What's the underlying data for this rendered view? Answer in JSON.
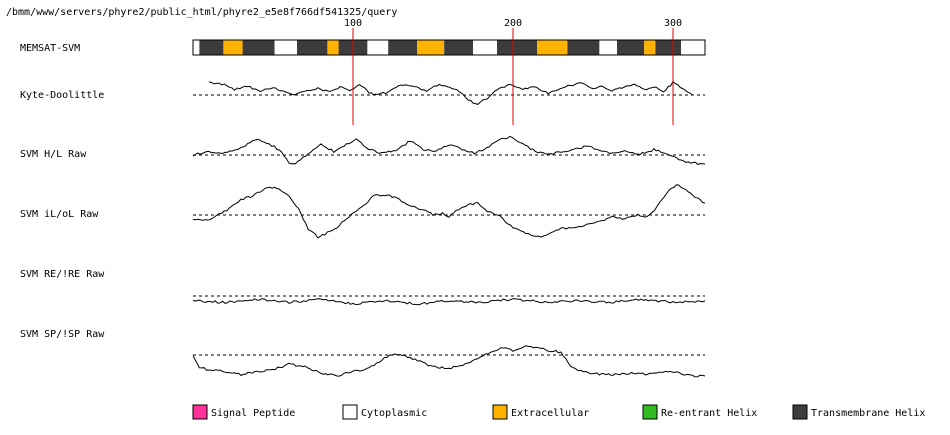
{
  "path": "/bmm/www/servers/phyre2/public_html/phyre2_e5e8f766df541325/query",
  "ruler_ticks": [
    100,
    200,
    300
  ],
  "sequence_length": 320,
  "tracks": [
    {
      "label": "MEMSAT-SVM"
    },
    {
      "label": "Kyte-Doolittle"
    },
    {
      "label": "SVM H/L Raw"
    },
    {
      "label": "SVM iL/oL Raw"
    },
    {
      "label": "SVM RE/!RE Raw"
    },
    {
      "label": "SVM SP/!SP Raw"
    }
  ],
  "colors": {
    "signal_peptide": "#ff3399",
    "cytoplasmic": "#ffffff",
    "extracellular": "#ffb200",
    "reentrant_helix": "#33bb22",
    "transmembrane_helix": "#3c3c3c",
    "ruler": "#dd0000"
  },
  "memsat_segments": [
    {
      "start": 0,
      "end": 4,
      "type": "cytoplasmic"
    },
    {
      "start": 4,
      "end": 19,
      "type": "transmembrane_helix"
    },
    {
      "start": 19,
      "end": 31,
      "type": "extracellular"
    },
    {
      "start": 31,
      "end": 51,
      "type": "transmembrane_helix"
    },
    {
      "start": 51,
      "end": 65,
      "type": "cytoplasmic"
    },
    {
      "start": 65,
      "end": 84,
      "type": "transmembrane_helix"
    },
    {
      "start": 84,
      "end": 91,
      "type": "extracellular"
    },
    {
      "start": 91,
      "end": 109,
      "type": "transmembrane_helix"
    },
    {
      "start": 109,
      "end": 122,
      "type": "cytoplasmic"
    },
    {
      "start": 122,
      "end": 140,
      "type": "transmembrane_helix"
    },
    {
      "start": 140,
      "end": 157,
      "type": "extracellular"
    },
    {
      "start": 157,
      "end": 175,
      "type": "transmembrane_helix"
    },
    {
      "start": 175,
      "end": 190,
      "type": "cytoplasmic"
    },
    {
      "start": 190,
      "end": 215,
      "type": "transmembrane_helix"
    },
    {
      "start": 215,
      "end": 234,
      "type": "extracellular"
    },
    {
      "start": 234,
      "end": 254,
      "type": "transmembrane_helix"
    },
    {
      "start": 254,
      "end": 265,
      "type": "cytoplasmic"
    },
    {
      "start": 265,
      "end": 282,
      "type": "transmembrane_helix"
    },
    {
      "start": 282,
      "end": 289,
      "type": "extracellular"
    },
    {
      "start": 289,
      "end": 305,
      "type": "transmembrane_helix"
    },
    {
      "start": 305,
      "end": 320,
      "type": "cytoplasmic"
    }
  ],
  "profiles": {
    "kyte_doolittle": [
      [
        10,
        0.9
      ],
      [
        18,
        0.8
      ],
      [
        26,
        0.4
      ],
      [
        34,
        0.6
      ],
      [
        42,
        0.3
      ],
      [
        50,
        0.5
      ],
      [
        58,
        0.2
      ],
      [
        62,
        0.0
      ],
      [
        70,
        0.3
      ],
      [
        78,
        0.5
      ],
      [
        86,
        0.2
      ],
      [
        92,
        0.6
      ],
      [
        98,
        0.3
      ],
      [
        104,
        0.7
      ],
      [
        110,
        0.2
      ],
      [
        114,
        0.0
      ],
      [
        122,
        0.2
      ],
      [
        130,
        0.7
      ],
      [
        138,
        0.6
      ],
      [
        146,
        0.3
      ],
      [
        154,
        0.8
      ],
      [
        162,
        0.5
      ],
      [
        168,
        0.2
      ],
      [
        172,
        -0.4
      ],
      [
        178,
        -0.6
      ],
      [
        184,
        -0.2
      ],
      [
        190,
        0.4
      ],
      [
        198,
        0.7
      ],
      [
        206,
        0.4
      ],
      [
        214,
        0.6
      ],
      [
        222,
        0.1
      ],
      [
        228,
        0.4
      ],
      [
        236,
        0.7
      ],
      [
        242,
        0.9
      ],
      [
        250,
        0.5
      ],
      [
        256,
        0.6
      ],
      [
        262,
        0.3
      ],
      [
        268,
        0.5
      ],
      [
        276,
        0.8
      ],
      [
        282,
        0.4
      ],
      [
        288,
        0.6
      ],
      [
        294,
        0.2
      ],
      [
        300,
        0.9
      ],
      [
        306,
        0.5
      ],
      [
        312,
        0.0
      ]
    ],
    "svm_hl": [
      [
        0,
        0.0
      ],
      [
        10,
        0.2
      ],
      [
        20,
        0.1
      ],
      [
        30,
        0.4
      ],
      [
        40,
        0.9
      ],
      [
        46,
        0.7
      ],
      [
        54,
        0.3
      ],
      [
        60,
        -0.4
      ],
      [
        64,
        -0.5
      ],
      [
        72,
        0.1
      ],
      [
        80,
        0.6
      ],
      [
        88,
        0.2
      ],
      [
        96,
        0.6
      ],
      [
        102,
        0.9
      ],
      [
        110,
        0.3
      ],
      [
        118,
        0.1
      ],
      [
        128,
        0.3
      ],
      [
        136,
        0.8
      ],
      [
        144,
        0.3
      ],
      [
        152,
        0.2
      ],
      [
        160,
        0.6
      ],
      [
        168,
        0.3
      ],
      [
        176,
        0.1
      ],
      [
        182,
        0.3
      ],
      [
        190,
        0.8
      ],
      [
        198,
        1.0
      ],
      [
        206,
        0.6
      ],
      [
        214,
        0.2
      ],
      [
        222,
        0.0
      ],
      [
        230,
        0.2
      ],
      [
        238,
        0.3
      ],
      [
        246,
        0.5
      ],
      [
        254,
        0.3
      ],
      [
        262,
        0.1
      ],
      [
        270,
        0.2
      ],
      [
        278,
        0.0
      ],
      [
        288,
        0.3
      ],
      [
        298,
        0.0
      ],
      [
        308,
        -0.4
      ],
      [
        320,
        -0.5
      ]
    ],
    "svm_iloL": [
      [
        0,
        -0.2
      ],
      [
        6,
        -0.3
      ],
      [
        12,
        -0.2
      ],
      [
        18,
        0.1
      ],
      [
        24,
        0.4
      ],
      [
        30,
        0.8
      ],
      [
        36,
        0.9
      ],
      [
        42,
        1.2
      ],
      [
        48,
        1.4
      ],
      [
        54,
        1.3
      ],
      [
        60,
        1.0
      ],
      [
        66,
        0.3
      ],
      [
        72,
        -0.7
      ],
      [
        78,
        -1.1
      ],
      [
        84,
        -0.9
      ],
      [
        90,
        -0.6
      ],
      [
        96,
        -0.2
      ],
      [
        102,
        0.2
      ],
      [
        108,
        0.6
      ],
      [
        114,
        1.0
      ],
      [
        120,
        1.0
      ],
      [
        126,
        0.9
      ],
      [
        132,
        0.6
      ],
      [
        138,
        0.4
      ],
      [
        144,
        0.3
      ],
      [
        150,
        0.0
      ],
      [
        156,
        0.1
      ],
      [
        160,
        -0.1
      ],
      [
        166,
        0.3
      ],
      [
        172,
        0.5
      ],
      [
        178,
        0.6
      ],
      [
        184,
        0.2
      ],
      [
        192,
        -0.1
      ],
      [
        200,
        -0.6
      ],
      [
        208,
        -0.9
      ],
      [
        216,
        -1.1
      ],
      [
        224,
        -0.9
      ],
      [
        230,
        -0.7
      ],
      [
        238,
        -0.6
      ],
      [
        246,
        -0.5
      ],
      [
        254,
        -0.3
      ],
      [
        262,
        -0.1
      ],
      [
        270,
        -0.2
      ],
      [
        278,
        0.0
      ],
      [
        284,
        -0.1
      ],
      [
        290,
        0.4
      ],
      [
        296,
        1.1
      ],
      [
        302,
        1.5
      ],
      [
        308,
        1.3
      ],
      [
        314,
        0.9
      ],
      [
        320,
        0.6
      ]
    ],
    "svm_re": [
      [
        0,
        -0.3
      ],
      [
        20,
        -0.4
      ],
      [
        40,
        -0.2
      ],
      [
        60,
        -0.4
      ],
      [
        80,
        -0.2
      ],
      [
        100,
        -0.5
      ],
      [
        120,
        -0.3
      ],
      [
        140,
        -0.5
      ],
      [
        160,
        -0.3
      ],
      [
        180,
        -0.4
      ],
      [
        200,
        -0.2
      ],
      [
        220,
        -0.4
      ],
      [
        240,
        -0.3
      ],
      [
        260,
        -0.4
      ],
      [
        280,
        -0.2
      ],
      [
        300,
        -0.4
      ],
      [
        320,
        -0.3
      ]
    ],
    "svm_sp": [
      [
        0,
        0.0
      ],
      [
        4,
        -0.8
      ],
      [
        10,
        -1.0
      ],
      [
        20,
        -1.1
      ],
      [
        30,
        -1.3
      ],
      [
        40,
        -1.1
      ],
      [
        50,
        -1.0
      ],
      [
        60,
        -0.6
      ],
      [
        70,
        -0.8
      ],
      [
        80,
        -1.2
      ],
      [
        90,
        -1.4
      ],
      [
        100,
        -1.1
      ],
      [
        110,
        -0.9
      ],
      [
        118,
        -0.3
      ],
      [
        126,
        0.1
      ],
      [
        134,
        -0.1
      ],
      [
        142,
        -0.4
      ],
      [
        150,
        -0.8
      ],
      [
        160,
        -0.9
      ],
      [
        170,
        -0.6
      ],
      [
        178,
        -0.2
      ],
      [
        186,
        0.2
      ],
      [
        194,
        0.5
      ],
      [
        200,
        0.3
      ],
      [
        208,
        0.6
      ],
      [
        216,
        0.5
      ],
      [
        222,
        0.3
      ],
      [
        230,
        0.2
      ],
      [
        236,
        -0.8
      ],
      [
        244,
        -1.1
      ],
      [
        254,
        -1.3
      ],
      [
        264,
        -1.3
      ],
      [
        274,
        -1.2
      ],
      [
        284,
        -1.3
      ],
      [
        294,
        -1.1
      ],
      [
        304,
        -1.2
      ],
      [
        312,
        -1.4
      ],
      [
        320,
        -1.4
      ]
    ]
  },
  "legend": [
    {
      "label": "Signal Peptide",
      "type": "signal_peptide",
      "icon": "signal-peptide-swatch"
    },
    {
      "label": "Cytoplasmic",
      "type": "cytoplasmic",
      "icon": "cytoplasmic-swatch"
    },
    {
      "label": "Extracellular",
      "type": "extracellular",
      "icon": "extracellular-swatch"
    },
    {
      "label": "Re-entrant Helix",
      "type": "reentrant_helix",
      "icon": "reentrant-helix-swatch"
    },
    {
      "label": "Transmembrane Helix",
      "type": "transmembrane_helix",
      "icon": "transmembrane-helix-swatch"
    }
  ]
}
